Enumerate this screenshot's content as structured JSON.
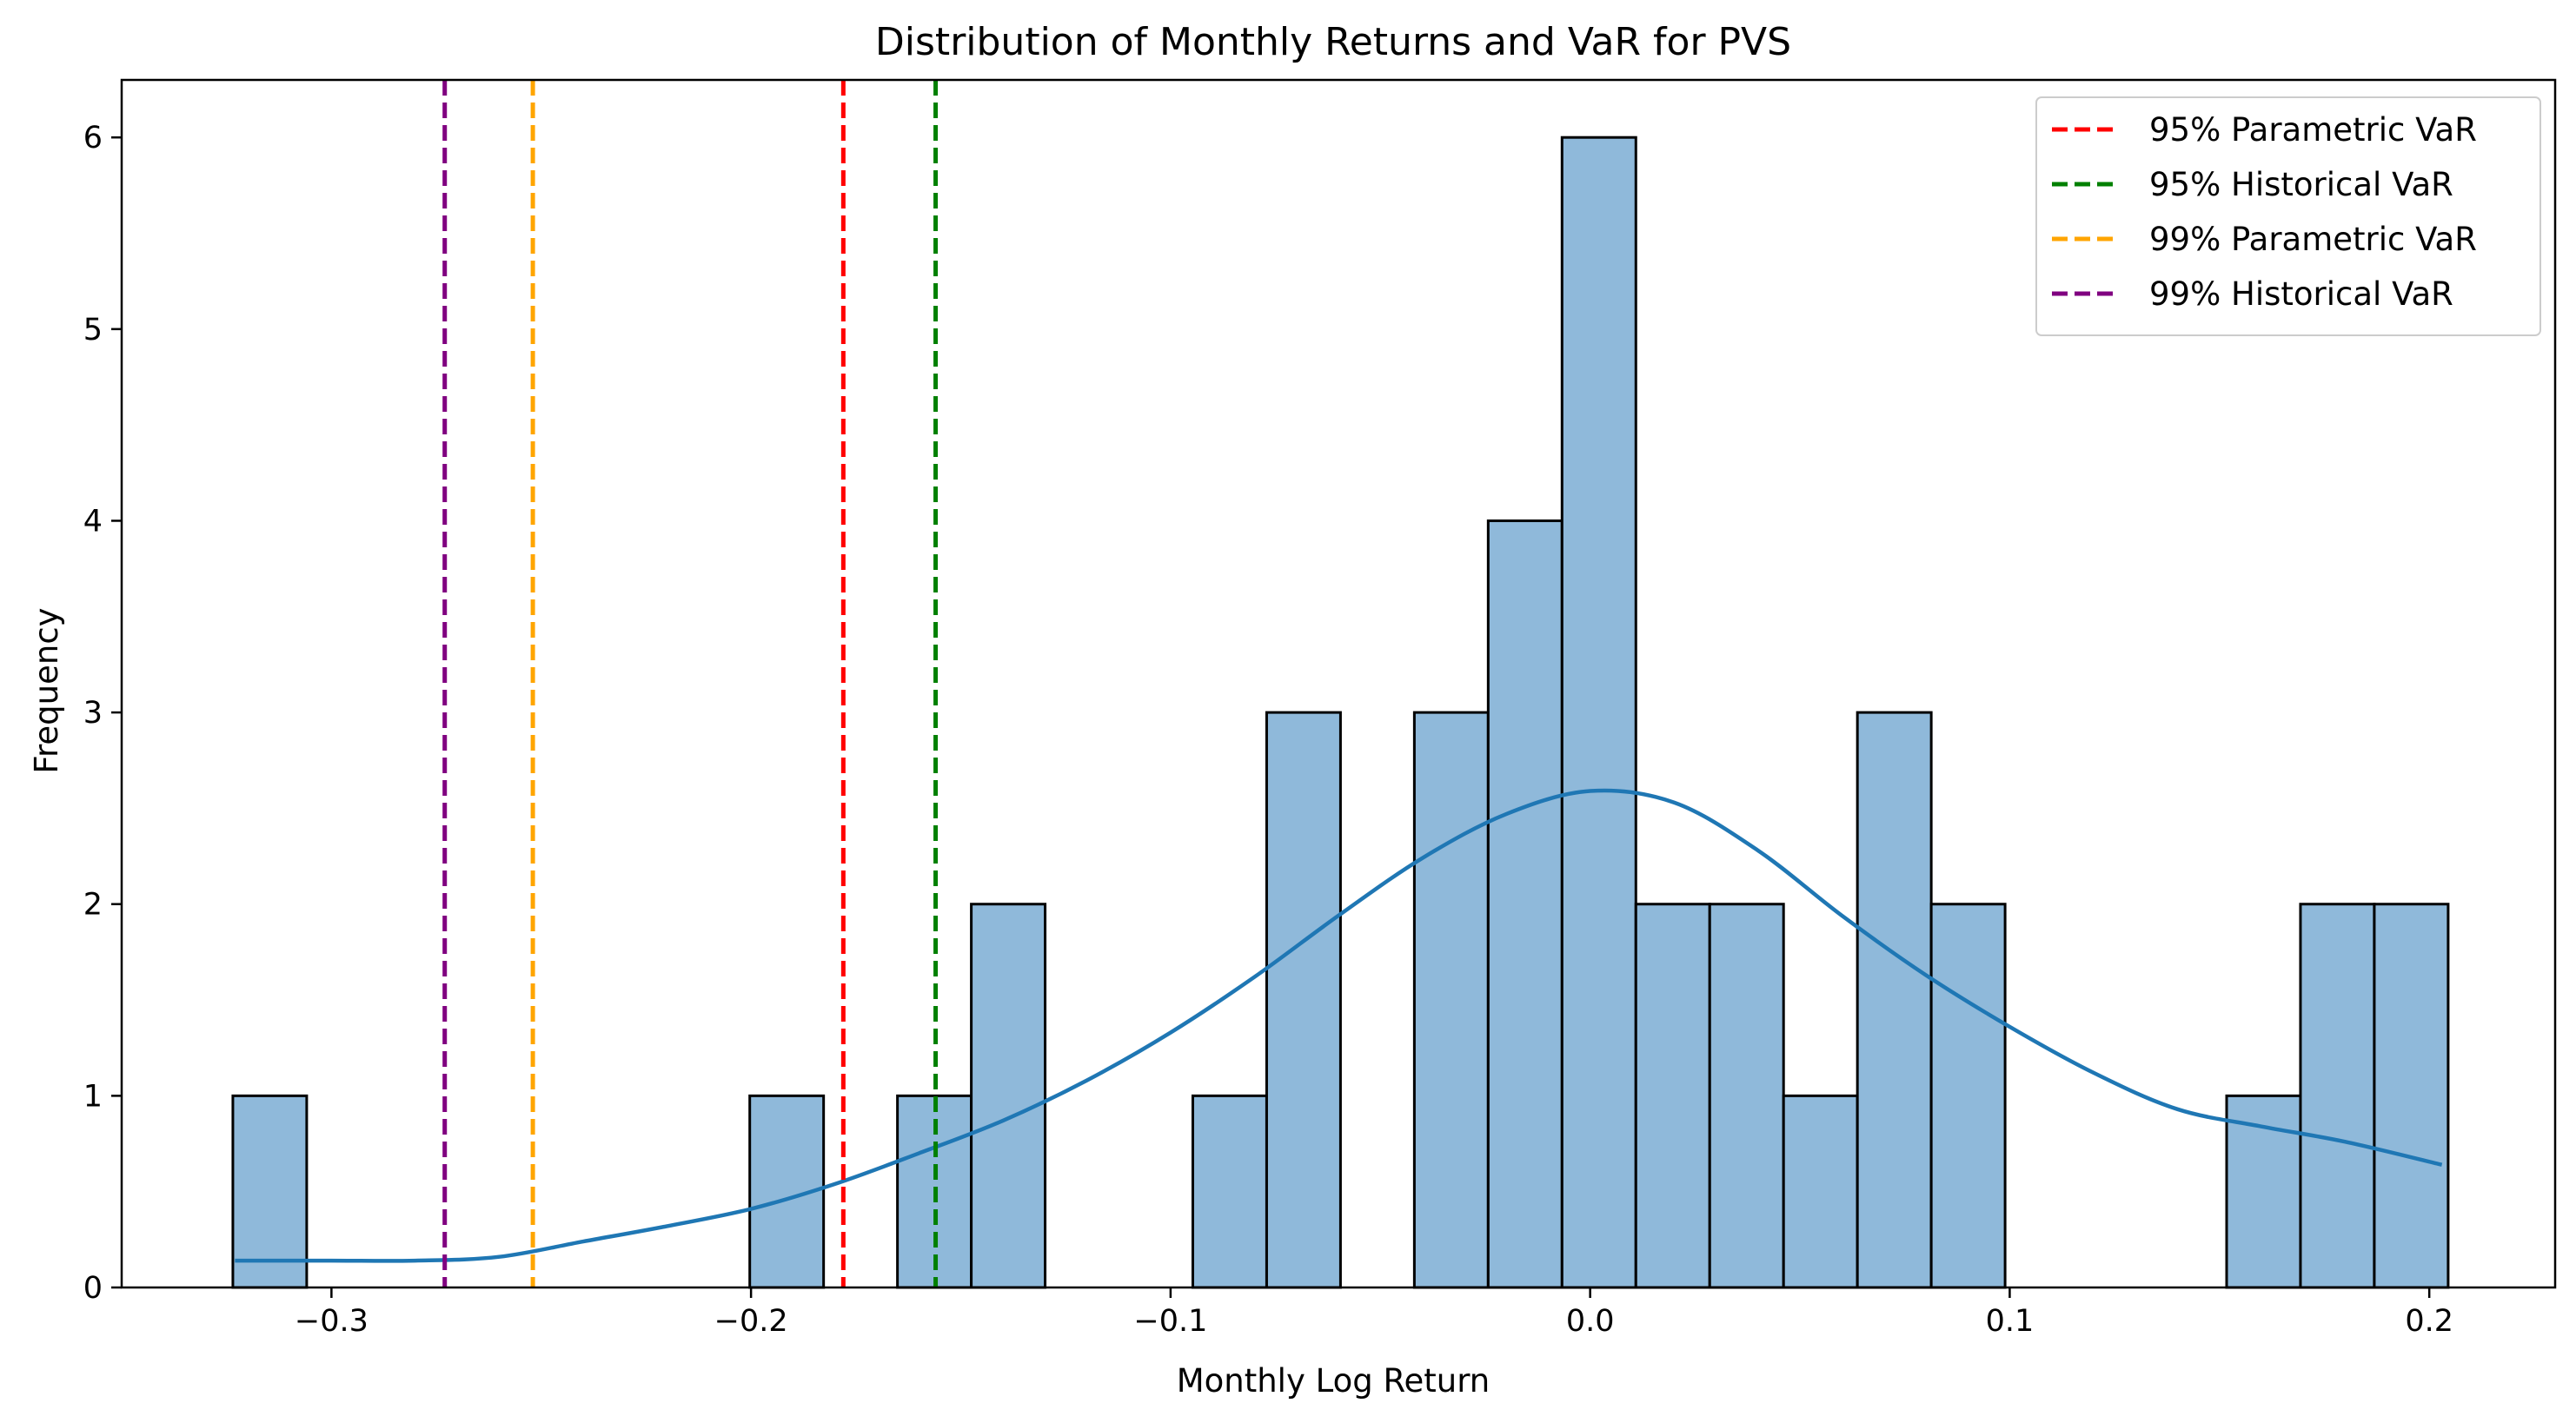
{
  "chart_data": {
    "type": "bar",
    "title": "Distribution of Monthly Returns and VaR for PVS",
    "xlabel": "Monthly Log Return",
    "ylabel": "Frequency",
    "xlim": [
      -0.35,
      0.23
    ],
    "ylim": [
      0,
      6.3
    ],
    "xticks": [
      -0.3,
      -0.2,
      -0.1,
      0.0,
      0.1,
      0.2
    ],
    "xtick_labels": [
      "−0.3",
      "−0.2",
      "−0.1",
      "0.0",
      "0.1",
      "0.2"
    ],
    "yticks": [
      0,
      1,
      2,
      3,
      4,
      5,
      6
    ],
    "ytick_labels": [
      "0",
      "1",
      "2",
      "3",
      "4",
      "5",
      "6"
    ],
    "histogram": {
      "color": "#8FB9DA",
      "edge_color": "#000000",
      "bins": [
        {
          "x0": -0.3235,
          "x1": -0.3059,
          "count": 1
        },
        {
          "x0": -0.2003,
          "x1": -0.1827,
          "count": 1
        },
        {
          "x0": -0.1651,
          "x1": -0.1475,
          "count": 1
        },
        {
          "x0": -0.1475,
          "x1": -0.1299,
          "count": 2
        },
        {
          "x0": -0.0947,
          "x1": -0.0771,
          "count": 1
        },
        {
          "x0": -0.0771,
          "x1": -0.0595,
          "count": 3
        },
        {
          "x0": -0.0419,
          "x1": -0.0243,
          "count": 3
        },
        {
          "x0": -0.0243,
          "x1": -0.0067,
          "count": 4
        },
        {
          "x0": -0.0067,
          "x1": 0.0109,
          "count": 6
        },
        {
          "x0": 0.0109,
          "x1": 0.0285,
          "count": 2
        },
        {
          "x0": 0.0285,
          "x1": 0.0461,
          "count": 2
        },
        {
          "x0": 0.0461,
          "x1": 0.0637,
          "count": 1
        },
        {
          "x0": 0.0637,
          "x1": 0.0813,
          "count": 3
        },
        {
          "x0": 0.0813,
          "x1": 0.0989,
          "count": 2
        },
        {
          "x0": 0.1517,
          "x1": 0.1693,
          "count": 1
        },
        {
          "x0": 0.1693,
          "x1": 0.1869,
          "count": 2
        },
        {
          "x0": 0.1869,
          "x1": 0.2045,
          "count": 2
        }
      ]
    },
    "kde": {
      "color": "#1F77B4",
      "x": [
        -0.323,
        -0.3,
        -0.28,
        -0.26,
        -0.24,
        -0.22,
        -0.2,
        -0.18,
        -0.16,
        -0.14,
        -0.12,
        -0.1,
        -0.08,
        -0.06,
        -0.04,
        -0.02,
        0.0,
        0.02,
        0.04,
        0.06,
        0.08,
        0.1,
        0.12,
        0.14,
        0.16,
        0.18,
        0.203
      ],
      "y": [
        0.14,
        0.14,
        0.14,
        0.16,
        0.24,
        0.32,
        0.41,
        0.54,
        0.7,
        0.87,
        1.08,
        1.33,
        1.62,
        1.94,
        2.24,
        2.47,
        2.59,
        2.53,
        2.28,
        1.94,
        1.63,
        1.36,
        1.12,
        0.93,
        0.84,
        0.76,
        0.64
      ]
    },
    "series": [
      {
        "name": "95% Parametric VaR",
        "x": -0.178,
        "color": "#FF0000"
      },
      {
        "name": "95% Historical VaR",
        "x": -0.156,
        "color": "#008000"
      },
      {
        "name": "99% Parametric VaR",
        "x": -0.252,
        "color": "#FFA500"
      },
      {
        "name": "99% Historical VaR",
        "x": -0.273,
        "color": "#800080"
      }
    ],
    "legend_position": "top-right",
    "grid": false
  }
}
